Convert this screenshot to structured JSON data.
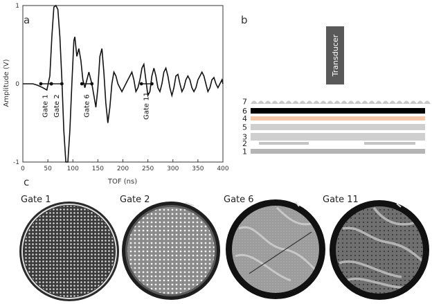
{
  "panels": {
    "a": "a",
    "b": "b",
    "c": "c"
  },
  "chart_data": {
    "type": "line",
    "xlabel": "TOF (ns)",
    "ylabel": "Amplitude (V)",
    "xlim": [
      0,
      400
    ],
    "ylim": [
      -1,
      1
    ],
    "xticks": [
      0,
      50,
      100,
      150,
      200,
      250,
      300,
      350,
      400
    ],
    "yticks": [
      -1,
      0,
      1
    ],
    "grid": false,
    "series": [
      {
        "x": [
          0,
          10,
          20,
          30,
          40,
          48,
          54,
          58,
          62,
          66,
          70,
          74,
          78,
          82,
          86,
          90,
          94,
          98,
          102,
          104,
          108,
          112,
          116,
          120,
          124,
          128,
          132,
          134,
          138,
          142,
          146,
          150,
          154,
          158,
          162,
          166,
          170,
          174,
          178,
          182,
          186,
          190,
          194,
          198,
          202,
          206,
          210,
          214,
          218,
          222,
          226,
          230,
          234,
          238,
          242,
          246,
          250,
          254,
          258,
          262,
          266,
          270,
          274,
          278,
          282,
          286,
          290,
          294,
          298,
          302,
          306,
          310,
          314,
          318,
          322,
          326,
          330,
          334,
          338,
          342,
          346,
          350,
          354,
          358,
          362,
          366,
          370,
          374,
          378,
          382,
          386,
          390,
          394,
          398,
          400
        ],
        "y": [
          0,
          0,
          0,
          -0.02,
          -0.05,
          -0.08,
          0.1,
          0.6,
          0.98,
          1.0,
          0.95,
          0.6,
          0.05,
          -0.6,
          -1.0,
          -1.0,
          -0.6,
          0.0,
          0.55,
          0.6,
          0.35,
          0.45,
          0.3,
          0.05,
          -0.05,
          0.05,
          0.15,
          0.1,
          0.0,
          -0.15,
          -0.3,
          -0.05,
          0.35,
          0.45,
          0.15,
          -0.25,
          -0.5,
          -0.3,
          0.0,
          0.15,
          0.1,
          0.0,
          -0.05,
          -0.1,
          -0.05,
          0.0,
          0.05,
          0.1,
          0.15,
          0.05,
          -0.1,
          -0.05,
          0.05,
          0.2,
          0.25,
          0.05,
          -0.15,
          -0.1,
          0.1,
          0.2,
          0.1,
          -0.05,
          -0.1,
          0.0,
          0.15,
          0.2,
          0.1,
          -0.05,
          -0.15,
          -0.05,
          0.1,
          0.12,
          0.0,
          -0.1,
          -0.05,
          0.05,
          0.1,
          0.05,
          -0.05,
          -0.1,
          -0.05,
          0.05,
          0.1,
          0.15,
          0.1,
          0.0,
          -0.1,
          -0.05,
          0.05,
          0.08,
          0.0,
          -0.05,
          0.0,
          0.05,
          0.0
        ]
      }
    ],
    "gates": [
      {
        "label": "Gate 1",
        "x_start": 36,
        "x_end": 57,
        "label_x": 45
      },
      {
        "label": "Gate 2",
        "x_start": 57,
        "x_end": 78,
        "label_x": 68
      },
      {
        "label": "Gate 6",
        "x_start": 118,
        "x_end": 138,
        "label_x": 128
      },
      {
        "label": "Gate 11",
        "x_start": 237,
        "x_end": 258,
        "label_x": 247
      }
    ]
  },
  "schematic": {
    "transducer_label": "Transducer",
    "layers": [
      {
        "label": "7",
        "color": "#c8c8c8",
        "style": "wavy"
      },
      {
        "label": "6",
        "color": "#000000",
        "style": "solid"
      },
      {
        "label": "4",
        "color": "#f4c7a6",
        "style": "solid"
      },
      {
        "label": "5",
        "color": "#cfcfcf",
        "style": "solid"
      },
      {
        "label": "3",
        "color": "#cfcfcf",
        "style": "solid"
      },
      {
        "label": "2",
        "color": "#c4c4c4",
        "style": "split"
      },
      {
        "label": "1",
        "color": "#b4b4b4",
        "style": "solid"
      }
    ]
  },
  "images": [
    {
      "title": "Gate 1",
      "texture": "dense-dots"
    },
    {
      "title": "Gate 2",
      "texture": "dots"
    },
    {
      "title": "Gate 6",
      "texture": "smooth-bands"
    },
    {
      "title": "Gate 11",
      "texture": "contour-bands"
    }
  ]
}
